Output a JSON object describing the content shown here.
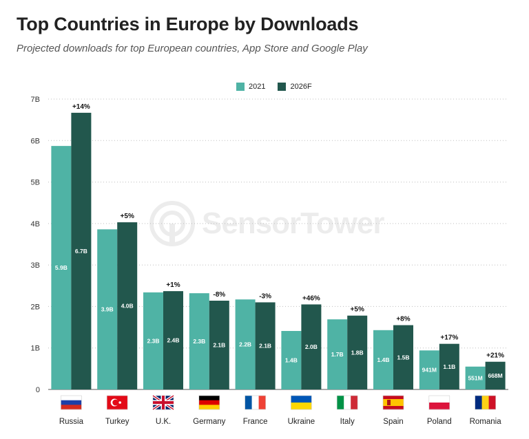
{
  "header": {
    "title": "Top Countries in Europe by Downloads",
    "subtitle": "Projected downloads for top European countries, App Store and Google Play"
  },
  "watermark": {
    "text": "SensorTower"
  },
  "colors": {
    "series_2021": "#4fb3a5",
    "series_2026F": "#22574d"
  },
  "chart_data": {
    "type": "bar",
    "title": "Top Countries in Europe by Downloads",
    "subtitle": "Projected downloads for top European countries, App Store and Google Play",
    "categories": [
      "Russia",
      "Turkey",
      "U.K.",
      "Germany",
      "France",
      "Ukraine",
      "Italy",
      "Spain",
      "Poland",
      "Romania"
    ],
    "flags": [
      "flag-russia-icon",
      "flag-turkey-icon",
      "flag-uk-icon",
      "flag-germany-icon",
      "flag-france-icon",
      "flag-ukraine-icon",
      "flag-italy-icon",
      "flag-spain-icon",
      "flag-poland-icon",
      "flag-romania-icon"
    ],
    "series": [
      {
        "name": "2021",
        "color": "#4fb3a5",
        "values": [
          5.87,
          3.86,
          2.34,
          2.32,
          2.17,
          1.41,
          1.69,
          1.43,
          0.941,
          0.551
        ],
        "labels": [
          "5.9B",
          "3.9B",
          "2.3B",
          "2.3B",
          "2.2B",
          "1.4B",
          "1.7B",
          "1.4B",
          "941M",
          "551M"
        ]
      },
      {
        "name": "2026F",
        "color": "#22574d",
        "values": [
          6.67,
          4.03,
          2.37,
          2.14,
          2.1,
          2.05,
          1.78,
          1.55,
          1.1,
          0.668
        ],
        "labels": [
          "6.7B",
          "4.0B",
          "2.4B",
          "2.1B",
          "2.1B",
          "2.0B",
          "1.8B",
          "1.5B",
          "1.1B",
          "668M"
        ]
      }
    ],
    "growth_labels": [
      "+14%",
      "+5%",
      "+1%",
      "-8%",
      "-3%",
      "+46%",
      "+5%",
      "+8%",
      "+17%",
      "+21%"
    ],
    "yticks": [
      0,
      1,
      2,
      3,
      4,
      5,
      6,
      7
    ],
    "ytick_labels": [
      "0",
      "1B",
      "2B",
      "3B",
      "4B",
      "5B",
      "6B",
      "7B"
    ],
    "ylim": [
      0,
      7
    ],
    "unit": "B",
    "xlabel": "",
    "ylabel": "",
    "grid": true,
    "grid_style": "dotted",
    "legend_position": "top-center"
  }
}
